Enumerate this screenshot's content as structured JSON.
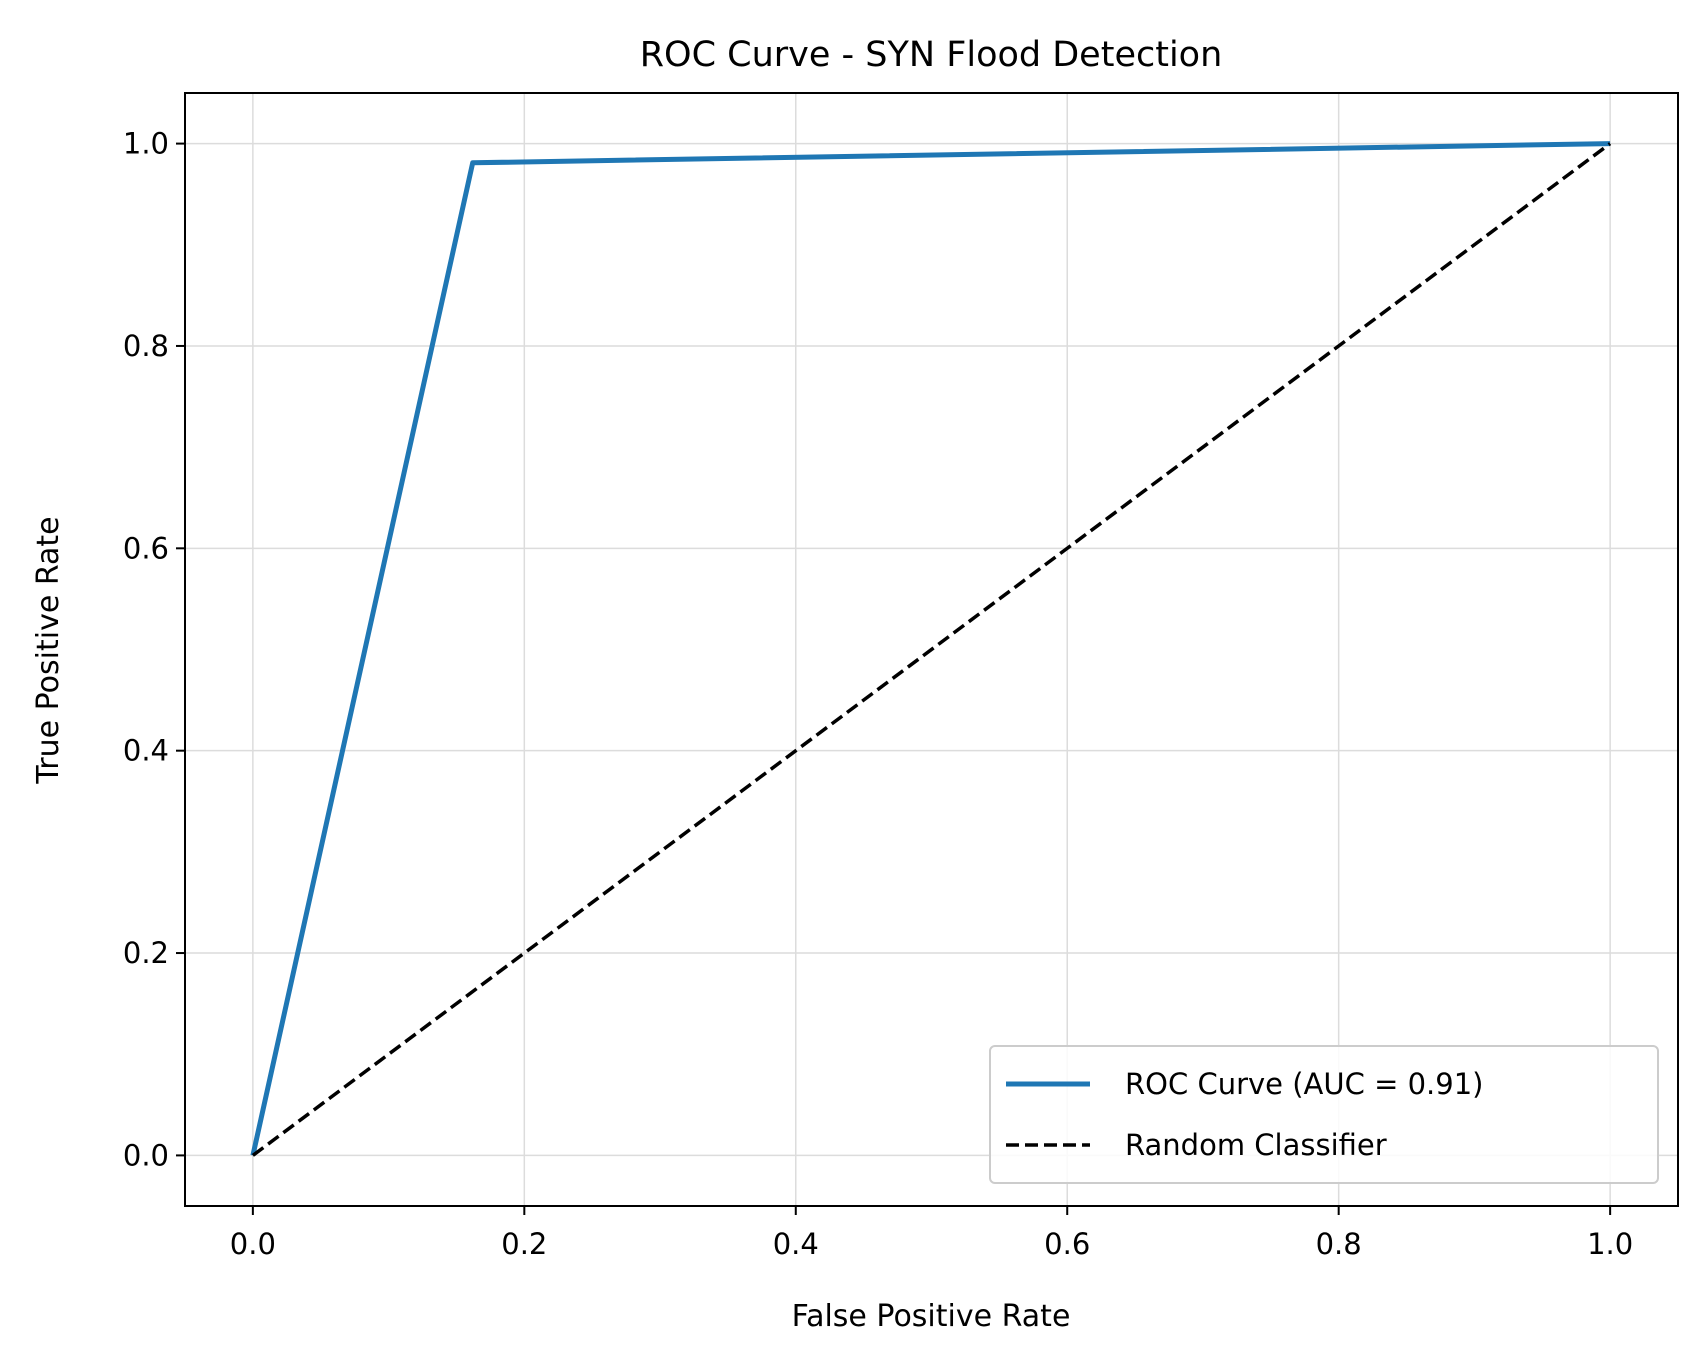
{
  "chart_data": {
    "type": "line",
    "title": "ROC Curve - SYN Flood Detection",
    "xlabel": "False Positive Rate",
    "ylabel": "True Positive Rate",
    "xlim": [
      -0.05,
      1.05
    ],
    "ylim": [
      -0.05,
      1.05
    ],
    "x_ticks": [
      0.0,
      0.2,
      0.4,
      0.6,
      0.8,
      1.0
    ],
    "y_ticks": [
      0.0,
      0.2,
      0.4,
      0.6,
      0.8,
      1.0
    ],
    "x_tick_labels": [
      "0.0",
      "0.2",
      "0.4",
      "0.6",
      "0.8",
      "1.0"
    ],
    "y_tick_labels": [
      "0.0",
      "0.2",
      "0.4",
      "0.6",
      "0.8",
      "1.0"
    ],
    "grid": true,
    "legend_position": "lower-right",
    "series": [
      {
        "name": "ROC Curve (AUC = 0.91)",
        "color": "#1f77b4",
        "style": "solid",
        "x": [
          0.0,
          0.162,
          1.0
        ],
        "y": [
          0.0,
          0.981,
          1.0
        ]
      },
      {
        "name": "Random Classifier",
        "color": "#000000",
        "style": "dashed",
        "x": [
          0.0,
          1.0
        ],
        "y": [
          0.0,
          1.0
        ]
      }
    ]
  }
}
